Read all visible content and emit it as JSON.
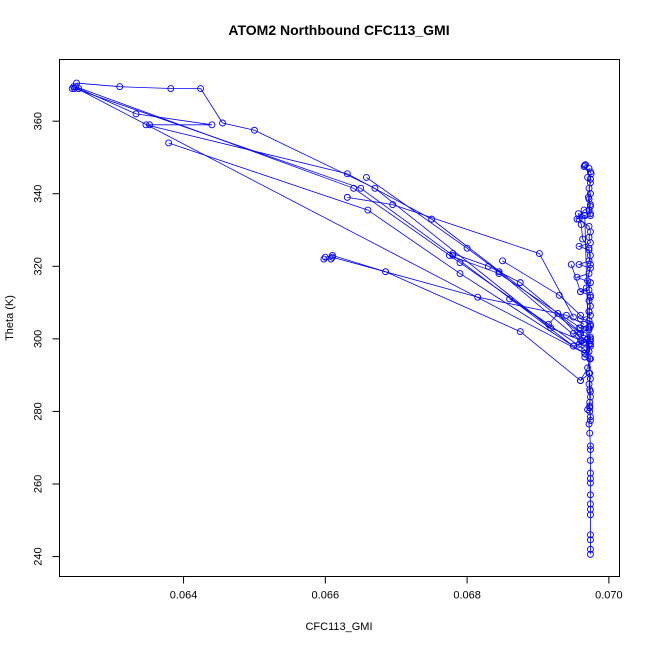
{
  "chart_data": {
    "type": "scatter",
    "title": "ATOM2 Northbound CFC113_GMI",
    "xlabel": "CFC113_GMI",
    "ylabel": "Theta (K)",
    "xlim": [
      0.06225,
      0.07015
    ],
    "ylim": [
      234.5,
      377
    ],
    "x_ticks": [
      0.064,
      0.066,
      0.068,
      0.07
    ],
    "x_tick_labels": [
      "0.064",
      "0.066",
      "0.068",
      "0.070"
    ],
    "y_ticks": [
      240,
      260,
      280,
      300,
      320,
      340,
      360
    ],
    "y_tick_labels": [
      "240",
      "260",
      "280",
      "300",
      "320",
      "340",
      "360"
    ],
    "grid": false,
    "marker": "open-circle",
    "connected": true,
    "color": "#0000ff",
    "series": [
      {
        "points": [
          [
            0.06974,
            240.6
          ],
          [
            0.06974,
            242.0
          ],
          [
            0.06974,
            244.6
          ],
          [
            0.06974,
            246.0
          ],
          [
            0.06974,
            251.5
          ],
          [
            0.06974,
            253.0
          ],
          [
            0.06974,
            254.5
          ],
          [
            0.06974,
            257.0
          ],
          [
            0.06974,
            260.3
          ],
          [
            0.06974,
            261.5
          ],
          [
            0.06974,
            263.0
          ],
          [
            0.06974,
            266.5
          ],
          [
            0.06974,
            269.5
          ],
          [
            0.06974,
            270.5
          ],
          [
            0.06973,
            274.0
          ],
          [
            0.06972,
            276.5
          ],
          [
            0.06974,
            278.5
          ],
          [
            0.06973,
            280.0
          ],
          [
            0.06973,
            281.0
          ],
          [
            0.0697,
            280.5
          ],
          [
            0.06973,
            282.5
          ],
          [
            0.06974,
            284.0
          ],
          [
            0.06973,
            286.0
          ],
          [
            0.06972,
            287.5
          ],
          [
            0.06974,
            289.0
          ],
          [
            0.06973,
            290.5
          ],
          [
            0.0696,
            288.5
          ],
          [
            0.0697,
            292.0
          ],
          [
            0.06973,
            294.5
          ],
          [
            0.06966,
            295.0
          ],
          [
            0.06972,
            296.5
          ],
          [
            0.06974,
            298.0
          ],
          [
            0.06958,
            298.5
          ],
          [
            0.06962,
            299.5
          ],
          [
            0.0697,
            300.0
          ],
          [
            0.06974,
            300.5
          ],
          [
            0.0695,
            301.5
          ],
          [
            0.06972,
            302.5
          ],
          [
            0.06958,
            303.0
          ],
          [
            0.06974,
            304.0
          ],
          [
            0.06972,
            305.0
          ],
          [
            0.0696,
            305.5
          ],
          [
            0.06974,
            306.5
          ],
          [
            0.06972,
            307.5
          ],
          [
            0.06974,
            309.0
          ],
          [
            0.06972,
            310.5
          ],
          [
            0.06974,
            312.0
          ],
          [
            0.0696,
            313.0
          ],
          [
            0.06972,
            313.5
          ],
          [
            0.06974,
            315.5
          ],
          [
            0.06955,
            317.0
          ],
          [
            0.06972,
            318.0
          ],
          [
            0.06974,
            319.5
          ],
          [
            0.06958,
            320.5
          ],
          [
            0.06972,
            321.5
          ],
          [
            0.06974,
            323.0
          ],
          [
            0.06972,
            324.5
          ],
          [
            0.06958,
            325.5
          ],
          [
            0.06974,
            326.5
          ],
          [
            0.06972,
            328.0
          ],
          [
            0.06974,
            329.5
          ],
          [
            0.06972,
            331.0
          ],
          [
            0.06958,
            333.0
          ],
          [
            0.06974,
            334.0
          ],
          [
            0.06972,
            335.5
          ],
          [
            0.06974,
            337.0
          ],
          [
            0.06972,
            338.5
          ],
          [
            0.06974,
            340.0
          ],
          [
            0.06972,
            341.5
          ],
          [
            0.06974,
            343.0
          ],
          [
            0.0697,
            344.5
          ],
          [
            0.06975,
            345.5
          ],
          [
            0.06972,
            347.0
          ],
          [
            0.06974,
            346.0
          ],
          [
            0.06965,
            347.5
          ],
          [
            0.06966,
            347.8
          ]
        ]
      },
      {
        "points": [
          [
            0.06967,
            348.0
          ],
          [
            0.06974,
            344.0
          ],
          [
            0.06971,
            339.0
          ],
          [
            0.06974,
            334.5
          ],
          [
            0.06966,
            334.0
          ],
          [
            0.06957,
            334.5
          ],
          [
            0.06961,
            331.5
          ],
          [
            0.06963,
            327.5
          ],
          [
            0.06972,
            325.0
          ],
          [
            0.06974,
            320.5
          ],
          [
            0.0697,
            316.0
          ],
          [
            0.06974,
            311.5
          ],
          [
            0.06972,
            307.5
          ],
          [
            0.06974,
            303.5
          ],
          [
            0.06972,
            298.5
          ],
          [
            0.06974,
            294.5
          ],
          [
            0.06972,
            290.5
          ],
          [
            0.06974,
            285.5
          ],
          [
            0.06973,
            281.5
          ],
          [
            0.06974,
            277.5
          ],
          [
            0.06966,
            334.0
          ],
          [
            0.06955,
            333.0
          ],
          [
            0.06965,
            335.5
          ],
          [
            0.06974,
            336.5
          ]
        ]
      },
      {
        "points": [
          [
            0.06243,
            369.0
          ],
          [
            0.06245,
            369.5
          ],
          [
            0.06966,
            296.0
          ],
          [
            0.06974,
            300.0
          ]
        ]
      },
      {
        "points": [
          [
            0.06249,
            370.5
          ],
          [
            0.0631,
            369.5
          ],
          [
            0.06382,
            369.0
          ],
          [
            0.06424,
            369.0
          ],
          [
            0.06455,
            359.5
          ],
          [
            0.065,
            357.5
          ],
          [
            0.0667,
            341.5
          ],
          [
            0.06918,
            303.0
          ],
          [
            0.06974,
            298.5
          ]
        ]
      },
      {
        "points": [
          [
            0.06252,
            369.0
          ],
          [
            0.06333,
            362.0
          ],
          [
            0.0644,
            359.0
          ],
          [
            0.06352,
            359.0
          ],
          [
            0.06347,
            359.0
          ],
          [
            0.06631,
            345.5
          ],
          [
            0.0675,
            333.0
          ],
          [
            0.0696,
            301.5
          ],
          [
            0.06972,
            303.0
          ]
        ]
      },
      {
        "points": [
          [
            0.06246,
            369.0
          ],
          [
            0.0665,
            341.5
          ],
          [
            0.0678,
            323.0
          ],
          [
            0.0695,
            298.0
          ],
          [
            0.06974,
            299.5
          ]
        ]
      },
      {
        "points": [
          [
            0.06248,
            369.5
          ],
          [
            0.0664,
            341.5
          ],
          [
            0.0679,
            321.0
          ],
          [
            0.06966,
            297.0
          ]
        ]
      },
      {
        "points": [
          [
            0.06379,
            354.0
          ],
          [
            0.0666,
            335.5
          ],
          [
            0.0679,
            318.0
          ],
          [
            0.06966,
            296.0
          ]
        ]
      },
      {
        "points": [
          [
            0.06631,
            339.0
          ],
          [
            0.06695,
            337.0
          ],
          [
            0.06902,
            323.5
          ],
          [
            0.0695,
            306.0
          ]
        ]
      },
      {
        "points": [
          [
            0.06658,
            344.5
          ],
          [
            0.068,
            325.0
          ],
          [
            0.06845,
            318.5
          ],
          [
            0.0696,
            299.5
          ]
        ]
      },
      {
        "points": [
          [
            0.0685,
            321.5
          ],
          [
            0.0693,
            312.0
          ],
          [
            0.0696,
            306.5
          ]
        ]
      },
      {
        "points": [
          [
            0.0678,
            323.5
          ],
          [
            0.0683,
            320.0
          ],
          [
            0.06875,
            315.5
          ],
          [
            0.06965,
            301.0
          ]
        ]
      },
      {
        "points": [
          [
            0.06775,
            323.0
          ],
          [
            0.06845,
            318.0
          ],
          [
            0.0696,
            303.0
          ]
        ]
      },
      {
        "points": [
          [
            0.066,
            322.5
          ],
          [
            0.0661,
            323.0
          ],
          [
            0.06685,
            318.5
          ],
          [
            0.06875,
            302.0
          ],
          [
            0.0696,
            288.5
          ]
        ]
      },
      {
        "points": [
          [
            0.06598,
            322.0
          ],
          [
            0.06608,
            322.0
          ],
          [
            0.0661,
            322.5
          ],
          [
            0.06815,
            311.5
          ],
          [
            0.0694,
            306.5
          ],
          [
            0.06965,
            304.0
          ]
        ]
      },
      {
        "points": [
          [
            0.0686,
            311.0
          ],
          [
            0.06915,
            304.0
          ],
          [
            0.06928,
            307.0
          ],
          [
            0.06965,
            299.0
          ]
        ]
      },
      {
        "points": [
          [
            0.06947,
            320.5
          ],
          [
            0.0696,
            313.0
          ],
          [
            0.06968,
            314.0
          ]
        ]
      }
    ]
  }
}
